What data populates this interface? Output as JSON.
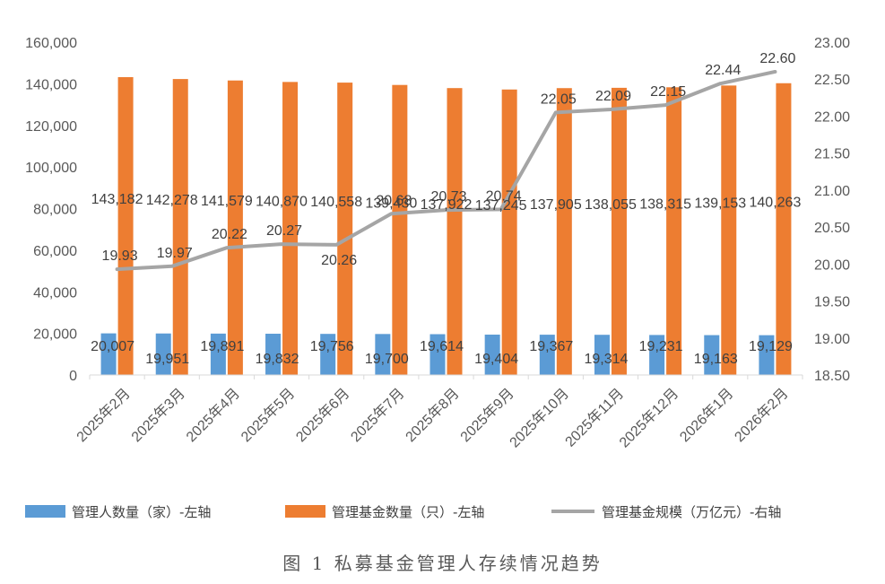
{
  "caption": "图 1 私募基金管理人存续情况趋势",
  "colors": {
    "managers": "#5B9BD5",
    "funds": "#ED7D31",
    "scale": "#A5A5A5"
  },
  "chart_data": {
    "type": "bar",
    "categories": [
      "2025年2月",
      "2025年3月",
      "2025年4月",
      "2025年5月",
      "2025年6月",
      "2025年7月",
      "2025年8月",
      "2025年9月",
      "2025年10月",
      "2025年11月",
      "2025年12月",
      "2026年1月",
      "2026年2月"
    ],
    "series": [
      {
        "name": "管理人数量（家）-左轴",
        "type": "bar",
        "axis": "left",
        "values": [
          20007,
          19951,
          19891,
          19832,
          19756,
          19700,
          19614,
          19404,
          19367,
          19314,
          19231,
          19163,
          19129
        ],
        "labels": [
          "20,007",
          "19,951",
          "19,891",
          "19,832",
          "19,756",
          "19,700",
          "19,614",
          "19,404",
          "19,367",
          "19,314",
          "19,231",
          "19,163",
          "19,129"
        ]
      },
      {
        "name": "管理基金数量（只）-左轴",
        "type": "bar",
        "axis": "left",
        "values": [
          143182,
          142278,
          141579,
          140870,
          140558,
          139430,
          137922,
          137245,
          137905,
          138055,
          138315,
          139153,
          140263
        ],
        "labels": [
          "143,182",
          "142,278",
          "141,579",
          "140,870",
          "140,558",
          "139,430",
          "137,922",
          "137,245",
          "137,905",
          "138,055",
          "138,315",
          "139,153",
          "140,263"
        ]
      },
      {
        "name": "管理基金规模（万亿元）-右轴",
        "type": "line",
        "axis": "right",
        "values": [
          19.93,
          19.97,
          20.22,
          20.27,
          20.26,
          20.68,
          20.73,
          20.74,
          22.05,
          22.09,
          22.15,
          22.44,
          22.6
        ],
        "labels": [
          "19.93",
          "19.97",
          "20.22",
          "20.27",
          "20.26",
          "20.68",
          "20.73",
          "20.74",
          "22.05",
          "22.09",
          "22.15",
          "22.44",
          "22.60"
        ]
      }
    ],
    "y_left": {
      "min": 0,
      "max": 160000,
      "ticks": [
        "0",
        "20,000",
        "40,000",
        "60,000",
        "80,000",
        "100,000",
        "120,000",
        "140,000",
        "160,000"
      ]
    },
    "y_right": {
      "min": 18.5,
      "max": 23.0,
      "ticks": [
        "18.50",
        "19.00",
        "19.50",
        "20.00",
        "20.50",
        "21.00",
        "21.50",
        "22.00",
        "22.50",
        "23.00"
      ]
    },
    "grid": false,
    "legend_position": "bottom"
  }
}
